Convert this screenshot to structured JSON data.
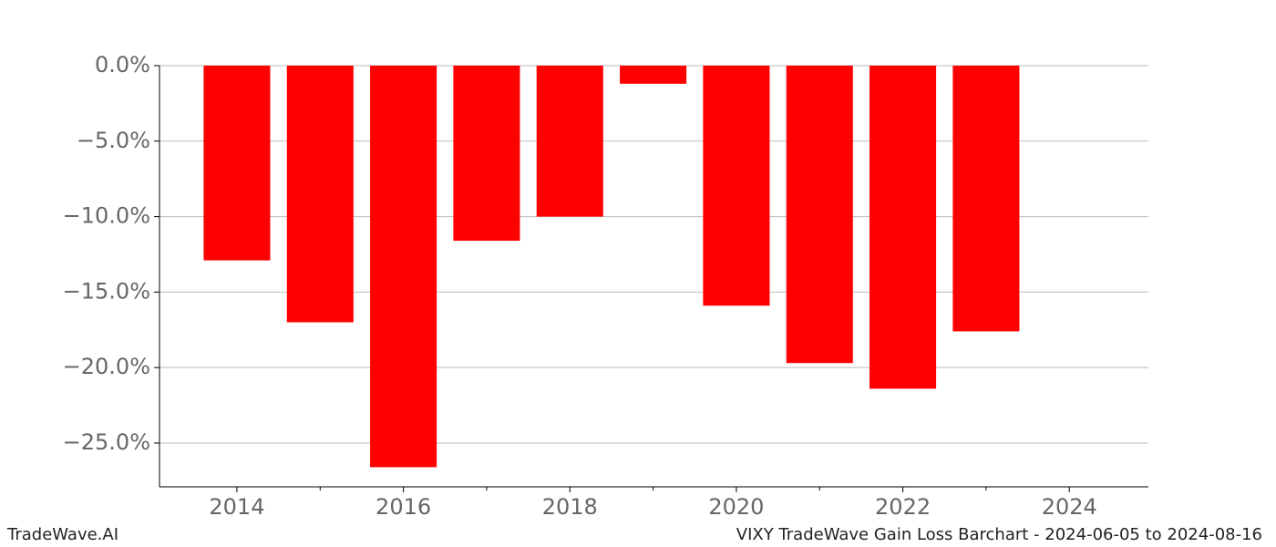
{
  "chart_data": {
    "type": "bar",
    "color": "#ff0000",
    "x": [
      2014,
      2015,
      2016,
      2017,
      2018,
      2019,
      2020,
      2021,
      2022,
      2023
    ],
    "values": [
      -12.9,
      -17.0,
      -26.6,
      -11.6,
      -10.0,
      -1.2,
      -15.9,
      -19.7,
      -21.4,
      -17.6
    ],
    "xlim": [
      2013.07,
      2024.95
    ],
    "xticks": [
      2014,
      2016,
      2018,
      2020,
      2022,
      2024
    ],
    "xminor_ticks": [
      2015,
      2017,
      2019,
      2021,
      2023
    ],
    "ylim": [
      -27.9,
      0
    ],
    "yticks": [
      {
        "value": 0,
        "label": "0.0%"
      },
      {
        "value": -5,
        "label": "−5.0%"
      },
      {
        "value": -10,
        "label": "−10.0%"
      },
      {
        "value": -15,
        "label": "−15.0%"
      },
      {
        "value": -20,
        "label": "−20.0%"
      },
      {
        "value": -25,
        "label": "−25.0%"
      }
    ],
    "grid": true
  },
  "footer": {
    "left": "TradeWave.AI",
    "right": "VIXY TradeWave Gain Loss Barchart - 2024-06-05 to 2024-08-16"
  }
}
